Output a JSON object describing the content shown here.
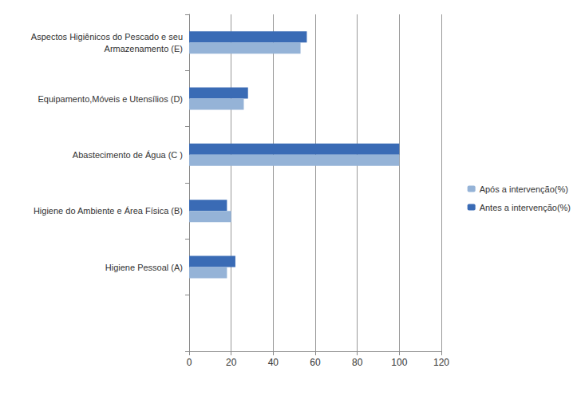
{
  "chart_data": {
    "type": "bar",
    "orientation": "horizontal",
    "categories": [
      null,
      "Higiene Pessoal (A)",
      "Higiene do Ambiente e Área Física (B)",
      "Abastecimento de Água (C )",
      "Equipamento,Móveis e Utensílios (D)",
      "Aspectos Higiênicos do Pescado e seu\nArmazenamento (E)"
    ],
    "series": [
      {
        "name": "Após a intervenção(%)",
        "color": "#95b3d7",
        "values": [
          null,
          18,
          20,
          100,
          26,
          53
        ]
      },
      {
        "name": "Antes a intervenção(%)",
        "color": "#3a6bb5",
        "values": [
          null,
          22,
          18,
          100,
          28,
          56
        ]
      }
    ],
    "xlim": [
      0,
      120
    ],
    "xticks": [
      0,
      20,
      40,
      60,
      80,
      100,
      120
    ],
    "grid": true,
    "legend": "right"
  }
}
